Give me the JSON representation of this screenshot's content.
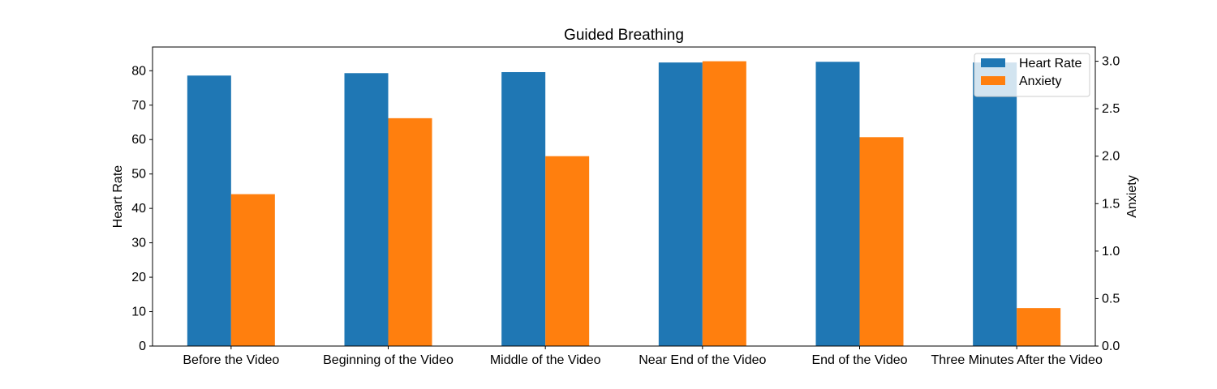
{
  "chart_data": {
    "type": "bar",
    "title": "Guided Breathing",
    "categories": [
      "Before the Video",
      "Beginning of the Video",
      "Middle of the Video",
      "Near End of the Video",
      "End of the Video",
      "Three Minutes After the Video"
    ],
    "series": [
      {
        "name": "Heart Rate",
        "axis": "left",
        "color": "#1f77b4",
        "values": [
          78.6,
          79.3,
          79.6,
          82.4,
          82.6,
          82.4
        ]
      },
      {
        "name": "Anxiety",
        "axis": "right",
        "color": "#ff7f0e",
        "values": [
          1.6,
          2.4,
          2.0,
          3.0,
          2.2,
          0.4
        ]
      }
    ],
    "ylabel": "Heart Rate",
    "y2label": "Anxiety",
    "ylim": [
      0,
      86.9
    ],
    "y2lim": [
      0,
      3.15
    ],
    "yticks": [
      0,
      10,
      20,
      30,
      40,
      50,
      60,
      70,
      80
    ],
    "y2ticks": [
      0.0,
      0.5,
      1.0,
      1.5,
      2.0,
      2.5,
      3.0
    ],
    "grid": false,
    "legend_position": "top-right"
  }
}
